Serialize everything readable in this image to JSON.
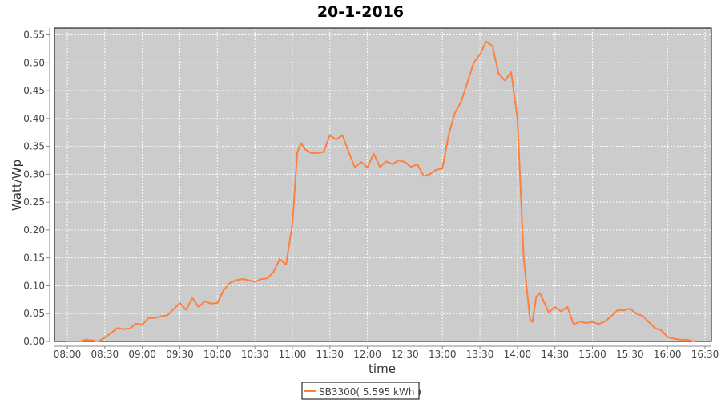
{
  "chart_data": {
    "type": "line",
    "title": "20-1-2016",
    "xlabel": "time",
    "ylabel": "Watt/Wp",
    "ylim": [
      0,
      0.55
    ],
    "xlim": [
      "08:00",
      "16:30"
    ],
    "x_ticks": [
      "08:00",
      "08:30",
      "09:00",
      "09:30",
      "10:00",
      "10:30",
      "11:00",
      "11:30",
      "12:00",
      "12:30",
      "13:00",
      "13:30",
      "14:00",
      "14:30",
      "15:00",
      "15:30",
      "16:00",
      "16:30"
    ],
    "y_ticks": [
      "0.00",
      "0.05",
      "0.10",
      "0.15",
      "0.20",
      "0.25",
      "0.30",
      "0.35",
      "0.40",
      "0.45",
      "0.50",
      "0.55"
    ],
    "grid": true,
    "legend_position": "bottom",
    "background": "#cccccc",
    "series": [
      {
        "name": "SB3300( 5.595 kWh )",
        "color": "#ff7f3f",
        "points": [
          [
            "08:00",
            0
          ],
          [
            "08:10",
            0
          ],
          [
            "08:15",
            0.003
          ],
          [
            "08:20",
            0.002
          ],
          [
            "08:25",
            0
          ],
          [
            "08:30",
            0.007
          ],
          [
            "08:35",
            0.015
          ],
          [
            "08:40",
            0.024
          ],
          [
            "08:45",
            0.022
          ],
          [
            "08:50",
            0.023
          ],
          [
            "08:55",
            0.032
          ],
          [
            "09:00",
            0.03
          ],
          [
            "09:05",
            0.042
          ],
          [
            "09:10",
            0.042
          ],
          [
            "09:15",
            0.045
          ],
          [
            "09:20",
            0.047
          ],
          [
            "09:25",
            0.058
          ],
          [
            "09:30",
            0.069
          ],
          [
            "09:35",
            0.057
          ],
          [
            "09:40",
            0.078
          ],
          [
            "09:45",
            0.062
          ],
          [
            "09:50",
            0.072
          ],
          [
            "09:55",
            0.068
          ],
          [
            "10:00",
            0.069
          ],
          [
            "10:05",
            0.092
          ],
          [
            "10:10",
            0.105
          ],
          [
            "10:15",
            0.11
          ],
          [
            "10:20",
            0.112
          ],
          [
            "10:25",
            0.11
          ],
          [
            "10:30",
            0.107
          ],
          [
            "10:35",
            0.112
          ],
          [
            "10:40",
            0.113
          ],
          [
            "10:45",
            0.125
          ],
          [
            "10:50",
            0.148
          ],
          [
            "10:55",
            0.138
          ],
          [
            "11:00",
            0.21
          ],
          [
            "11:04",
            0.34
          ],
          [
            "11:07",
            0.356
          ],
          [
            "11:10",
            0.345
          ],
          [
            "11:15",
            0.338
          ],
          [
            "11:20",
            0.338
          ],
          [
            "11:25",
            0.34
          ],
          [
            "11:30",
            0.37
          ],
          [
            "11:35",
            0.362
          ],
          [
            "11:40",
            0.37
          ],
          [
            "11:45",
            0.34
          ],
          [
            "11:50",
            0.312
          ],
          [
            "11:55",
            0.322
          ],
          [
            "12:00",
            0.312
          ],
          [
            "12:05",
            0.337
          ],
          [
            "12:10",
            0.313
          ],
          [
            "12:15",
            0.323
          ],
          [
            "12:20",
            0.318
          ],
          [
            "12:25",
            0.325
          ],
          [
            "12:30",
            0.322
          ],
          [
            "12:35",
            0.313
          ],
          [
            "12:40",
            0.318
          ],
          [
            "12:45",
            0.297
          ],
          [
            "12:50",
            0.3
          ],
          [
            "12:55",
            0.308
          ],
          [
            "13:00",
            0.31
          ],
          [
            "13:05",
            0.37
          ],
          [
            "13:10",
            0.41
          ],
          [
            "13:15",
            0.43
          ],
          [
            "13:20",
            0.465
          ],
          [
            "13:25",
            0.5
          ],
          [
            "13:30",
            0.515
          ],
          [
            "13:35",
            0.538
          ],
          [
            "13:40",
            0.53
          ],
          [
            "13:45",
            0.48
          ],
          [
            "13:50",
            0.468
          ],
          [
            "13:55",
            0.483
          ],
          [
            "14:00",
            0.4
          ],
          [
            "14:05",
            0.15
          ],
          [
            "14:10",
            0.04
          ],
          [
            "14:12",
            0.035
          ],
          [
            "14:15",
            0.08
          ],
          [
            "14:18",
            0.087
          ],
          [
            "14:25",
            0.052
          ],
          [
            "14:30",
            0.062
          ],
          [
            "14:35",
            0.054
          ],
          [
            "14:40",
            0.062
          ],
          [
            "14:45",
            0.03
          ],
          [
            "14:50",
            0.036
          ],
          [
            "14:55",
            0.033
          ],
          [
            "15:00",
            0.035
          ],
          [
            "15:05",
            0.031
          ],
          [
            "15:10",
            0.036
          ],
          [
            "15:15",
            0.045
          ],
          [
            "15:20",
            0.056
          ],
          [
            "15:25",
            0.056
          ],
          [
            "15:30",
            0.059
          ],
          [
            "15:35",
            0.05
          ],
          [
            "15:40",
            0.046
          ],
          [
            "15:45",
            0.035
          ],
          [
            "15:50",
            0.024
          ],
          [
            "15:55",
            0.02
          ],
          [
            "16:00",
            0.008
          ],
          [
            "16:05",
            0.005
          ],
          [
            "16:10",
            0.003
          ],
          [
            "16:15",
            0.003
          ],
          [
            "16:20",
            0.001
          ],
          [
            "16:22",
            0
          ]
        ]
      }
    ]
  }
}
